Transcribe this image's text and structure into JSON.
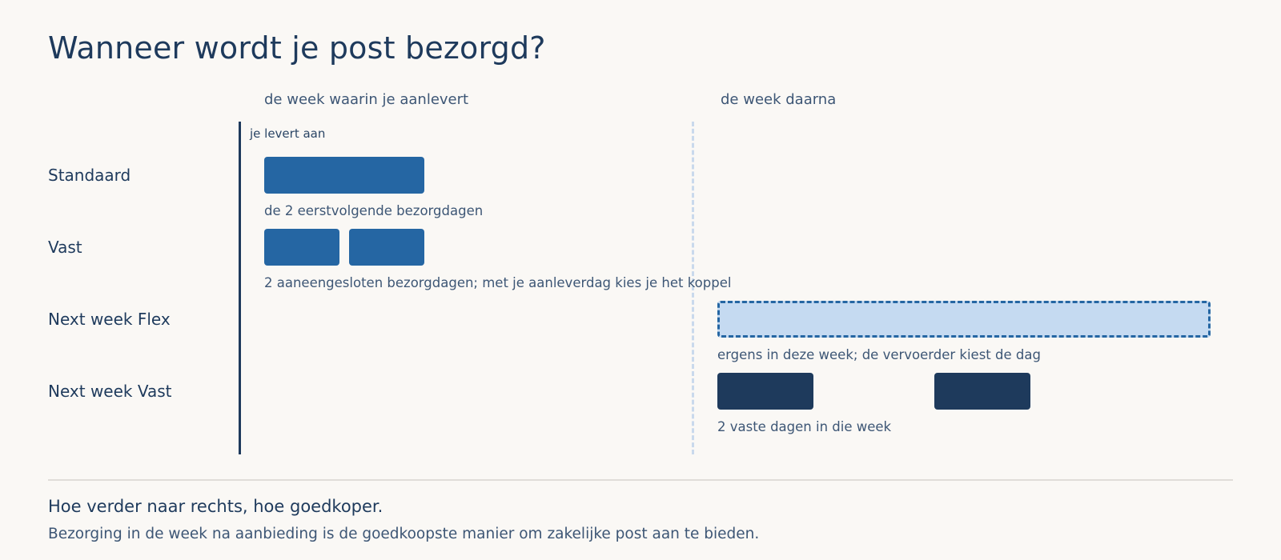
{
  "title": "Wanneer wordt je post bezorgd?",
  "columns": {
    "current_week": "de week waarin je aanlevert",
    "next_week": "de week daarna"
  },
  "marker": "je levert aan",
  "rows": [
    {
      "label": "Standaard",
      "caption": "de 2 eerstvolgende bezorgdagen"
    },
    {
      "label": "Vast",
      "caption": "2 aaneengesloten bezorgdagen; met je aanleverdag kies je het koppel"
    },
    {
      "label": "Next week Flex",
      "caption": "ergens in deze week; de vervoerder kiest de dag"
    },
    {
      "label": "Next week Vast",
      "caption": "2 vaste dagen in die week"
    }
  ],
  "footer": {
    "title": "Hoe verder naar rechts, hoe goedkoper.",
    "body": "Bezorging in de week na aanbieding is de goedkoopste manier om zakelijke post aan te bieden."
  },
  "colors": {
    "primary_blue": "#2566a3",
    "navy": "#1e3a5c",
    "flex_fill": "#c5daf1",
    "background": "#faf8f5"
  }
}
